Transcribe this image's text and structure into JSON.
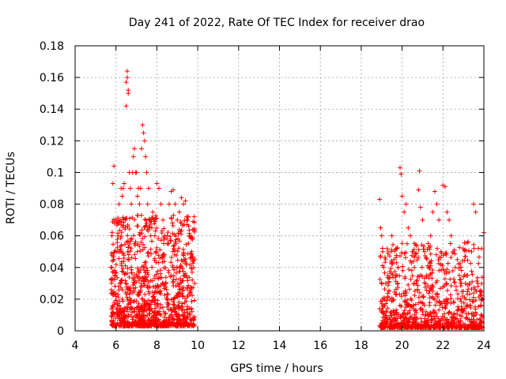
{
  "chart_data": {
    "type": "scatter",
    "title": "Day 241 of 2022, Rate Of TEC Index for receiver drao",
    "xlabel": "GPS time / hours",
    "ylabel": "ROTI / TECUs",
    "xlim": [
      4,
      24
    ],
    "ylim": [
      0,
      0.18
    ],
    "xticks": [
      "4",
      "6",
      "8",
      "10",
      "12",
      "14",
      "16",
      "18",
      "20",
      "22",
      "24"
    ],
    "yticks": [
      "0",
      "0.02",
      "0.04",
      "0.06",
      "0.08",
      "0.1",
      "0.12",
      "0.14",
      "0.16",
      "0.18"
    ],
    "grid": true,
    "marker": "+",
    "color": "#ff0000",
    "series": [
      {
        "x": [
          5.75,
          5.8,
          5.85,
          5.9,
          6.0,
          6.05,
          6.1,
          6.15,
          6.2,
          6.25,
          6.3,
          6.35,
          6.4,
          6.45,
          6.5,
          6.55,
          6.6,
          6.65,
          6.7,
          6.75,
          6.8,
          6.85,
          6.9,
          6.95,
          7.0,
          7.05,
          7.1,
          7.15,
          7.2,
          7.25,
          7.3,
          7.35,
          7.4,
          7.45,
          7.5,
          7.55,
          7.6,
          7.65,
          7.7,
          7.75,
          7.8,
          7.85,
          7.9,
          7.95,
          8.0,
          8.1,
          8.2,
          8.3,
          8.4,
          8.5,
          8.6,
          8.7,
          8.8,
          8.9,
          9.0,
          9.1,
          9.2,
          9.3,
          9.4,
          9.5,
          9.6,
          9.7,
          9.8,
          9.85,
          5.85,
          6.3,
          6.5,
          6.55,
          6.6,
          6.5,
          7.3,
          7.35,
          7.0,
          6.9,
          7.6,
          8.0,
          8.8,
          9.3,
          9.5
        ],
        "y": [
          0.04,
          0.06,
          0.093,
          0.104,
          0.07,
          0.05,
          0.06,
          0.08,
          0.07,
          0.09,
          0.085,
          0.09,
          0.093,
          0.07,
          0.157,
          0.164,
          0.152,
          0.1,
          0.09,
          0.08,
          0.1,
          0.11,
          0.115,
          0.1,
          0.1,
          0.085,
          0.09,
          0.08,
          0.09,
          0.115,
          0.13,
          0.125,
          0.12,
          0.11,
          0.1,
          0.08,
          0.09,
          0.07,
          0.06,
          0.065,
          0.075,
          0.07,
          0.06,
          0.05,
          0.093,
          0.09,
          0.08,
          0.07,
          0.06,
          0.06,
          0.08,
          0.088,
          0.089,
          0.08,
          0.07,
          0.075,
          0.084,
          0.08,
          0.082,
          0.07,
          0.06,
          0.05,
          0.04,
          0.03,
          0.015,
          0.02,
          0.142,
          0.16,
          0.15,
          0.03,
          0.02,
          0.01,
          0.005,
          0.025,
          0.015,
          0.01,
          0.005,
          0.005,
          0.01
        ]
      },
      {
        "x": [
          18.9,
          18.95,
          19.0,
          19.05,
          19.1,
          19.2,
          19.3,
          19.4,
          19.5,
          19.6,
          19.7,
          19.8,
          19.9,
          19.95,
          20.0,
          20.1,
          20.2,
          20.3,
          20.4,
          20.5,
          20.6,
          20.7,
          20.8,
          20.85,
          20.9,
          21.0,
          21.1,
          21.2,
          21.3,
          21.4,
          21.5,
          21.6,
          21.7,
          21.8,
          21.9,
          22.0,
          22.1,
          22.2,
          22.3,
          22.4,
          22.5,
          22.6,
          22.7,
          22.8,
          22.9,
          23.0,
          23.1,
          23.2,
          23.3,
          23.4,
          23.5,
          23.6,
          23.7,
          23.8,
          23.9,
          24.0,
          19.0,
          19.5,
          20.2,
          21.0,
          21.8,
          22.5,
          23.3,
          23.9
        ],
        "y": [
          0.083,
          0.065,
          0.06,
          0.05,
          0.04,
          0.03,
          0.035,
          0.02,
          0.06,
          0.045,
          0.035,
          0.04,
          0.103,
          0.099,
          0.085,
          0.075,
          0.08,
          0.065,
          0.06,
          0.05,
          0.04,
          0.03,
          0.089,
          0.101,
          0.078,
          0.07,
          0.05,
          0.035,
          0.04,
          0.06,
          0.075,
          0.088,
          0.08,
          0.07,
          0.05,
          0.092,
          0.091,
          0.075,
          0.07,
          0.06,
          0.05,
          0.04,
          0.045,
          0.035,
          0.03,
          0.025,
          0.03,
          0.035,
          0.03,
          0.05,
          0.08,
          0.075,
          0.03,
          0.025,
          0.02,
          0.062,
          0.005,
          0.01,
          0.008,
          0.012,
          0.006,
          0.009,
          0.007,
          0.005
        ]
      }
    ]
  }
}
